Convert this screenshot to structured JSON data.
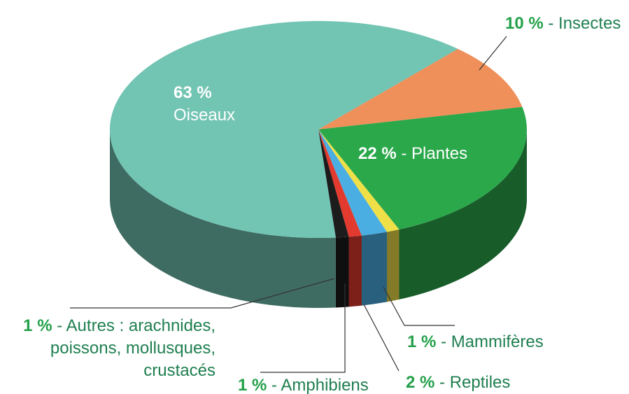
{
  "chart_data": {
    "type": "pie",
    "categories": [
      "Insectes",
      "Plantes",
      "Mammifères",
      "Reptiles",
      "Amphibiens",
      "Autres : arachnides, poissons, mollusques, crustacés",
      "Oiseaux"
    ],
    "values": [
      10,
      22,
      1,
      2,
      1,
      1,
      63
    ],
    "value_labels": [
      "10 %",
      "22 %",
      "1 %",
      "2 %",
      "1 %",
      "1 %",
      "63 %"
    ],
    "label_separator": " - ",
    "colors": [
      "#ef8f5a",
      "#2aa84a",
      "#efe047",
      "#4aaee3",
      "#e23a2e",
      "#1c1c1c",
      "#72c4b3"
    ]
  }
}
